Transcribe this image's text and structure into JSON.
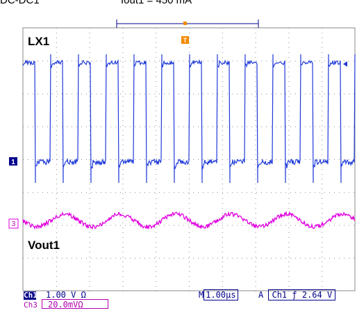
{
  "header": {
    "title": "DC-DC1",
    "load_label": "Iout1 = 450 mA"
  },
  "traces": {
    "lx1_label": "LX1",
    "vout1_label": "Vout1"
  },
  "markers": {
    "ch1_marker": "1",
    "ch3_marker": "3",
    "trigger_marker": "T"
  },
  "status": {
    "ch1_badge": "Ch1",
    "ch1_scale": "1.00 V Ω",
    "ch3_badge": "Ch3",
    "ch3_scale": "20.0mVΩ",
    "timebase_prefix": "M",
    "timebase_value": "1.00µs",
    "trigger_mode": "A",
    "trigger_source": "Ch1",
    "trigger_slope": "ƒ",
    "trigger_level": "2.64 V"
  },
  "colors": {
    "lx1_trace": "#1f3ad9",
    "vout1_trace": "#e000e0",
    "grid": "#888888",
    "trigger": "#f28a00",
    "hud": "#00008b"
  }
}
